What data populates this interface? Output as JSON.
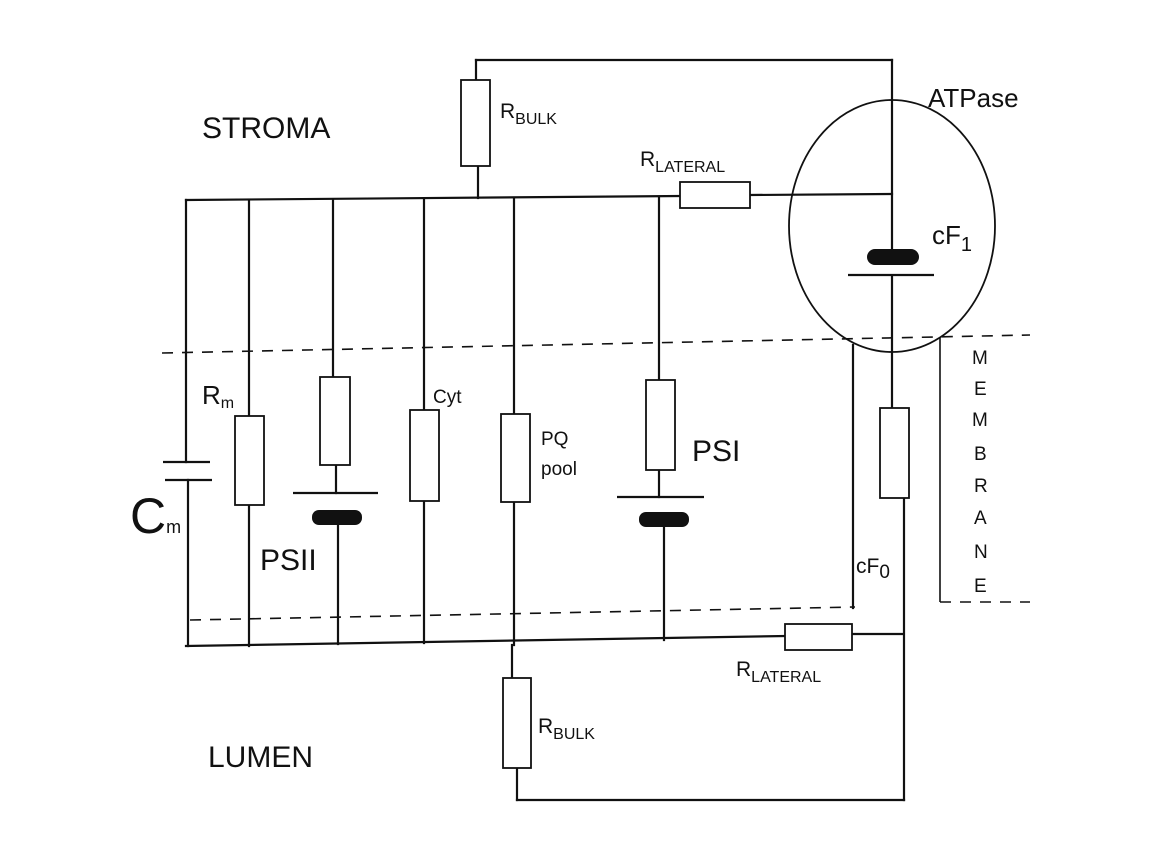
{
  "regions": {
    "stroma": "STROMA",
    "lumen": "LUMEN"
  },
  "atpase": {
    "label": "ATPase",
    "cf1_main": "cF",
    "cf1_sub": "1",
    "cf0_main": "cF",
    "cf0_sub": "0"
  },
  "resistors": {
    "r_bulk_top": {
      "main": "R",
      "sub": "BULK"
    },
    "r_lateral_top": {
      "main": "R",
      "sub": "LATERAL"
    },
    "r_bulk_bottom": {
      "main": "R",
      "sub": "BULK"
    },
    "r_lateral_bottom": {
      "main": "R",
      "sub": "LATERAL"
    },
    "rm": {
      "main": "R",
      "sub": "m"
    }
  },
  "capacitor": {
    "main": "C",
    "sub": "m"
  },
  "components": {
    "psii": "PSII",
    "cyt": "Cyt",
    "pq_line1": "PQ",
    "pq_line2": "pool",
    "psi": "PSI"
  },
  "membrane_letters": [
    "M",
    "E",
    "M",
    "B",
    "R",
    "A",
    "N",
    "E"
  ]
}
